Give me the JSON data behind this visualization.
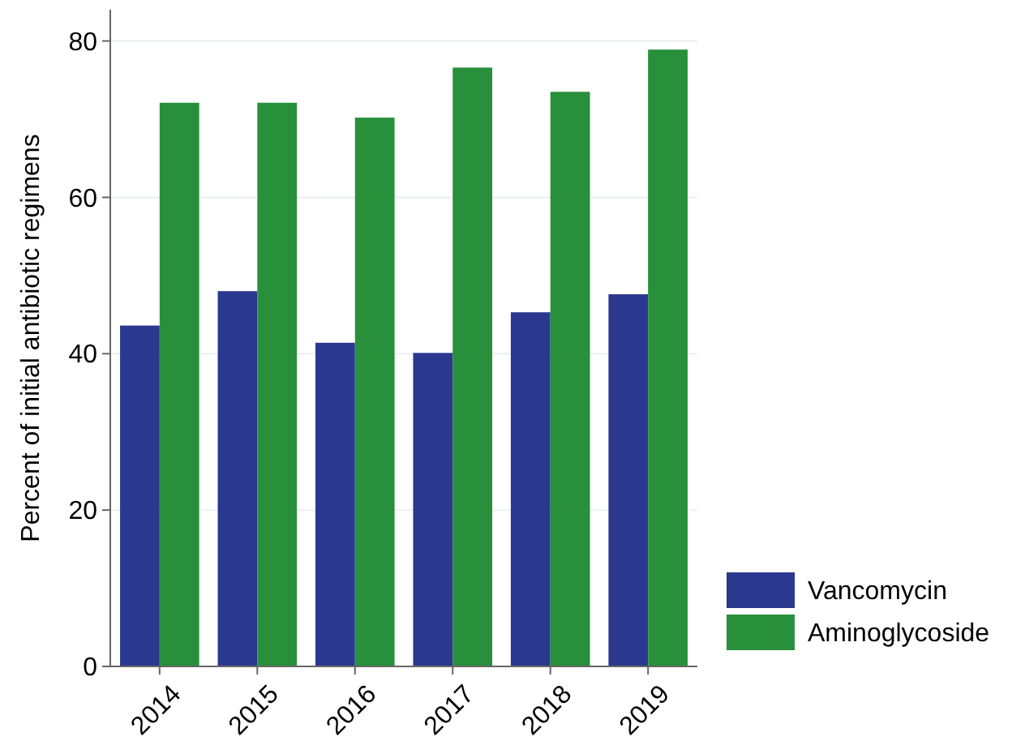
{
  "chart_data": {
    "type": "bar",
    "ylabel": "Percent of initial antibiotic regimens",
    "categories": [
      "2014",
      "2015",
      "2016",
      "2017",
      "2018",
      "2019"
    ],
    "series": [
      {
        "name": "Vancomycin",
        "color": "#2b388f",
        "values": [
          43.6,
          48.0,
          41.4,
          40.1,
          45.3,
          47.6
        ]
      },
      {
        "name": "Aminoglycoside",
        "color": "#28903b",
        "values": [
          72.1,
          72.1,
          70.2,
          76.6,
          73.5,
          78.9
        ]
      }
    ],
    "ylim": [
      0,
      84
    ],
    "yticks": [
      0,
      20,
      40,
      60,
      80
    ],
    "grid": "y",
    "legend": "bottom right"
  }
}
